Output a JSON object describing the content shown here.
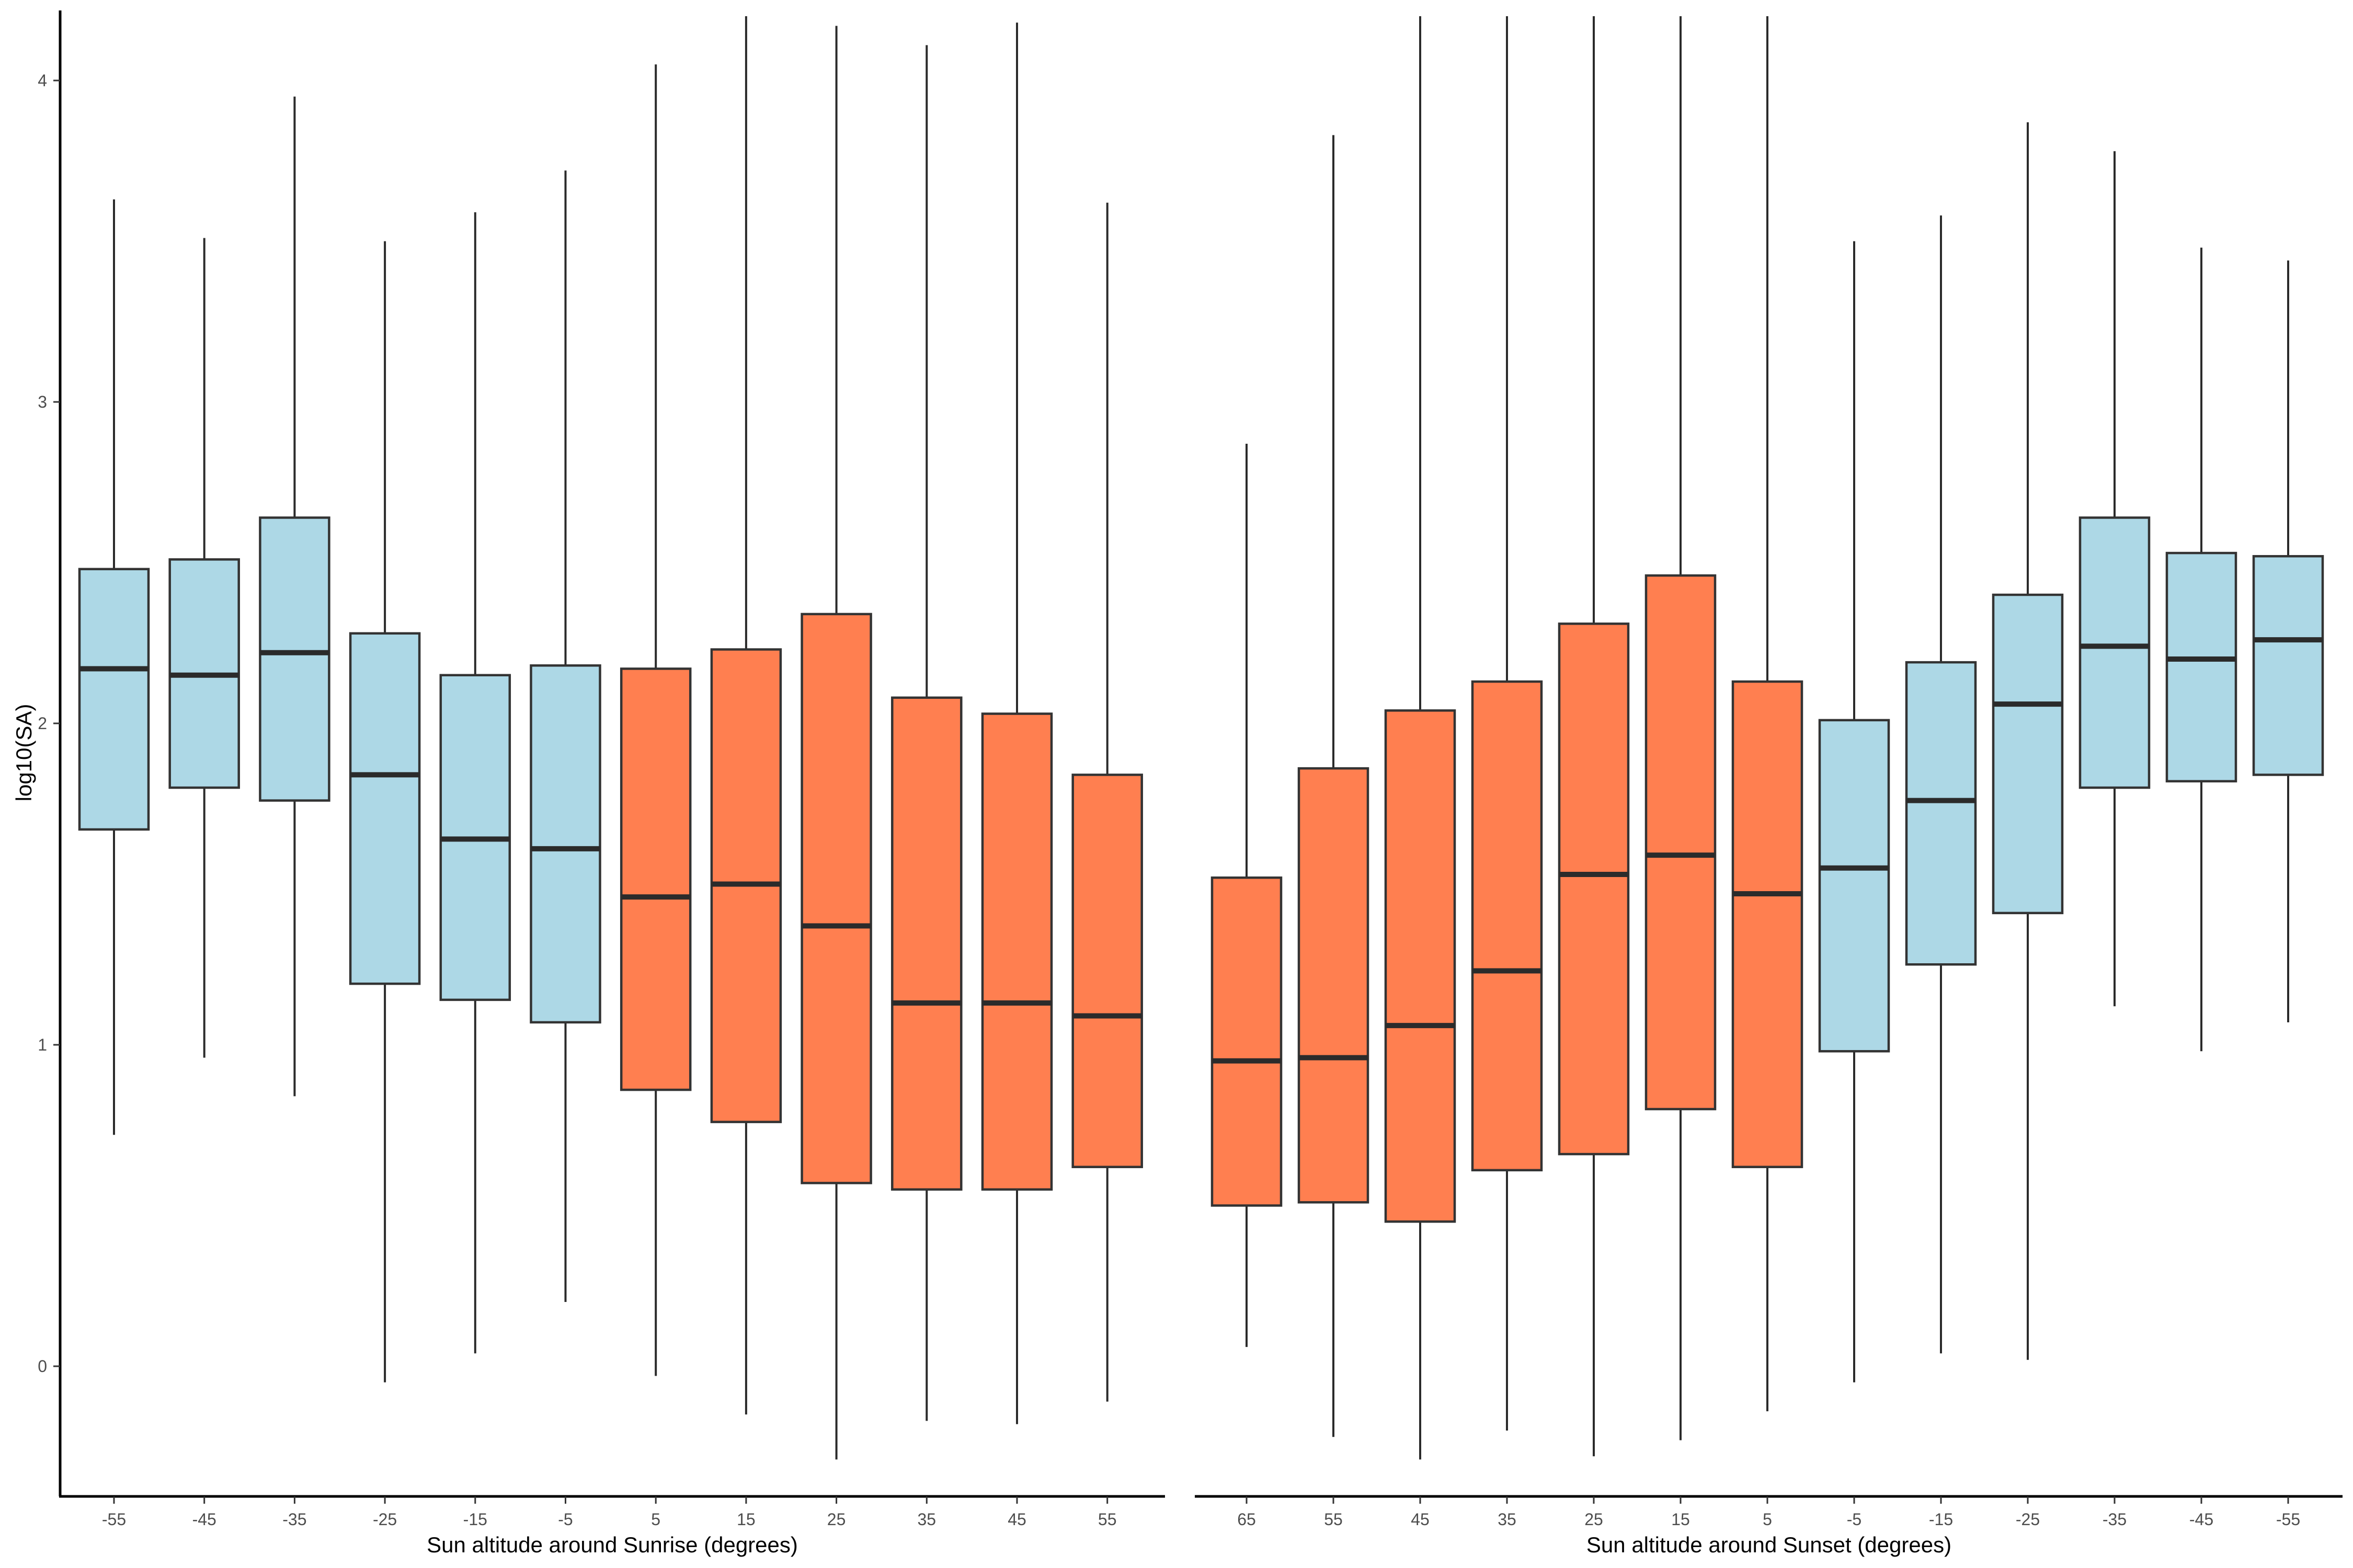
{
  "colors": {
    "night": "#add8e6",
    "day": "#ff7f50",
    "outline": "#333333"
  },
  "chart_data": [
    {
      "type": "box",
      "xlabel": "Sun altitude around Sunrise (degrees)",
      "ylabel": "log10(SA)",
      "ylim": [
        -0.4,
        4.2
      ],
      "y_ticks": [
        "0",
        "1",
        "2",
        "3",
        "4"
      ],
      "grid": false,
      "categories": [
        "-55",
        "-45",
        "-35",
        "-25",
        "-15",
        "-5",
        "5",
        "15",
        "25",
        "35",
        "45",
        "55"
      ],
      "fill": [
        "night",
        "night",
        "night",
        "night",
        "night",
        "night",
        "day",
        "day",
        "day",
        "day",
        "day",
        "day"
      ],
      "lower_whisker": [
        0.72,
        0.96,
        0.84,
        -0.05,
        0.04,
        0.2,
        -0.03,
        -0.15,
        -0.29,
        -0.17,
        -0.18,
        -0.11
      ],
      "q1": [
        1.67,
        1.8,
        1.76,
        1.19,
        1.14,
        1.07,
        0.86,
        0.76,
        0.57,
        0.55,
        0.55,
        0.62
      ],
      "median": [
        2.17,
        2.15,
        2.22,
        1.84,
        1.64,
        1.61,
        1.46,
        1.5,
        1.37,
        1.13,
        1.13,
        1.09
      ],
      "q3": [
        2.48,
        2.51,
        2.64,
        2.28,
        2.15,
        2.18,
        2.17,
        2.23,
        2.34,
        2.08,
        2.03,
        1.84
      ],
      "upper_whisker": [
        3.63,
        3.51,
        3.95,
        3.5,
        3.59,
        3.72,
        4.05,
        4.2,
        4.17,
        4.11,
        4.18,
        3.62
      ]
    },
    {
      "type": "box",
      "xlabel": "Sun altitude around Sunset (degrees)",
      "ylabel": "",
      "ylim": [
        -0.4,
        4.2
      ],
      "grid": false,
      "categories": [
        "65",
        "55",
        "45",
        "35",
        "25",
        "15",
        "5",
        "-5",
        "-15",
        "-25",
        "-35",
        "-45",
        "-55"
      ],
      "fill": [
        "day",
        "day",
        "day",
        "day",
        "day",
        "day",
        "day",
        "night",
        "night",
        "night",
        "night",
        "night",
        "night"
      ],
      "lower_whisker": [
        0.06,
        -0.22,
        -0.29,
        -0.2,
        -0.28,
        -0.23,
        -0.14,
        -0.05,
        0.04,
        0.02,
        1.12,
        0.98,
        1.07
      ],
      "q1": [
        0.5,
        0.51,
        0.45,
        0.61,
        0.66,
        0.8,
        0.62,
        0.98,
        1.25,
        1.41,
        1.8,
        1.82,
        1.84
      ],
      "median": [
        0.95,
        0.96,
        1.06,
        1.23,
        1.53,
        1.59,
        1.47,
        1.55,
        1.76,
        2.06,
        2.24,
        2.2,
        2.26
      ],
      "q3": [
        1.52,
        1.86,
        2.04,
        2.13,
        2.31,
        2.46,
        2.13,
        2.01,
        2.19,
        2.4,
        2.64,
        2.53,
        2.52
      ],
      "upper_whisker": [
        2.87,
        3.83,
        4.2,
        4.2,
        4.2,
        4.2,
        4.2,
        3.5,
        3.58,
        3.87,
        3.78,
        3.48,
        3.44
      ]
    }
  ]
}
